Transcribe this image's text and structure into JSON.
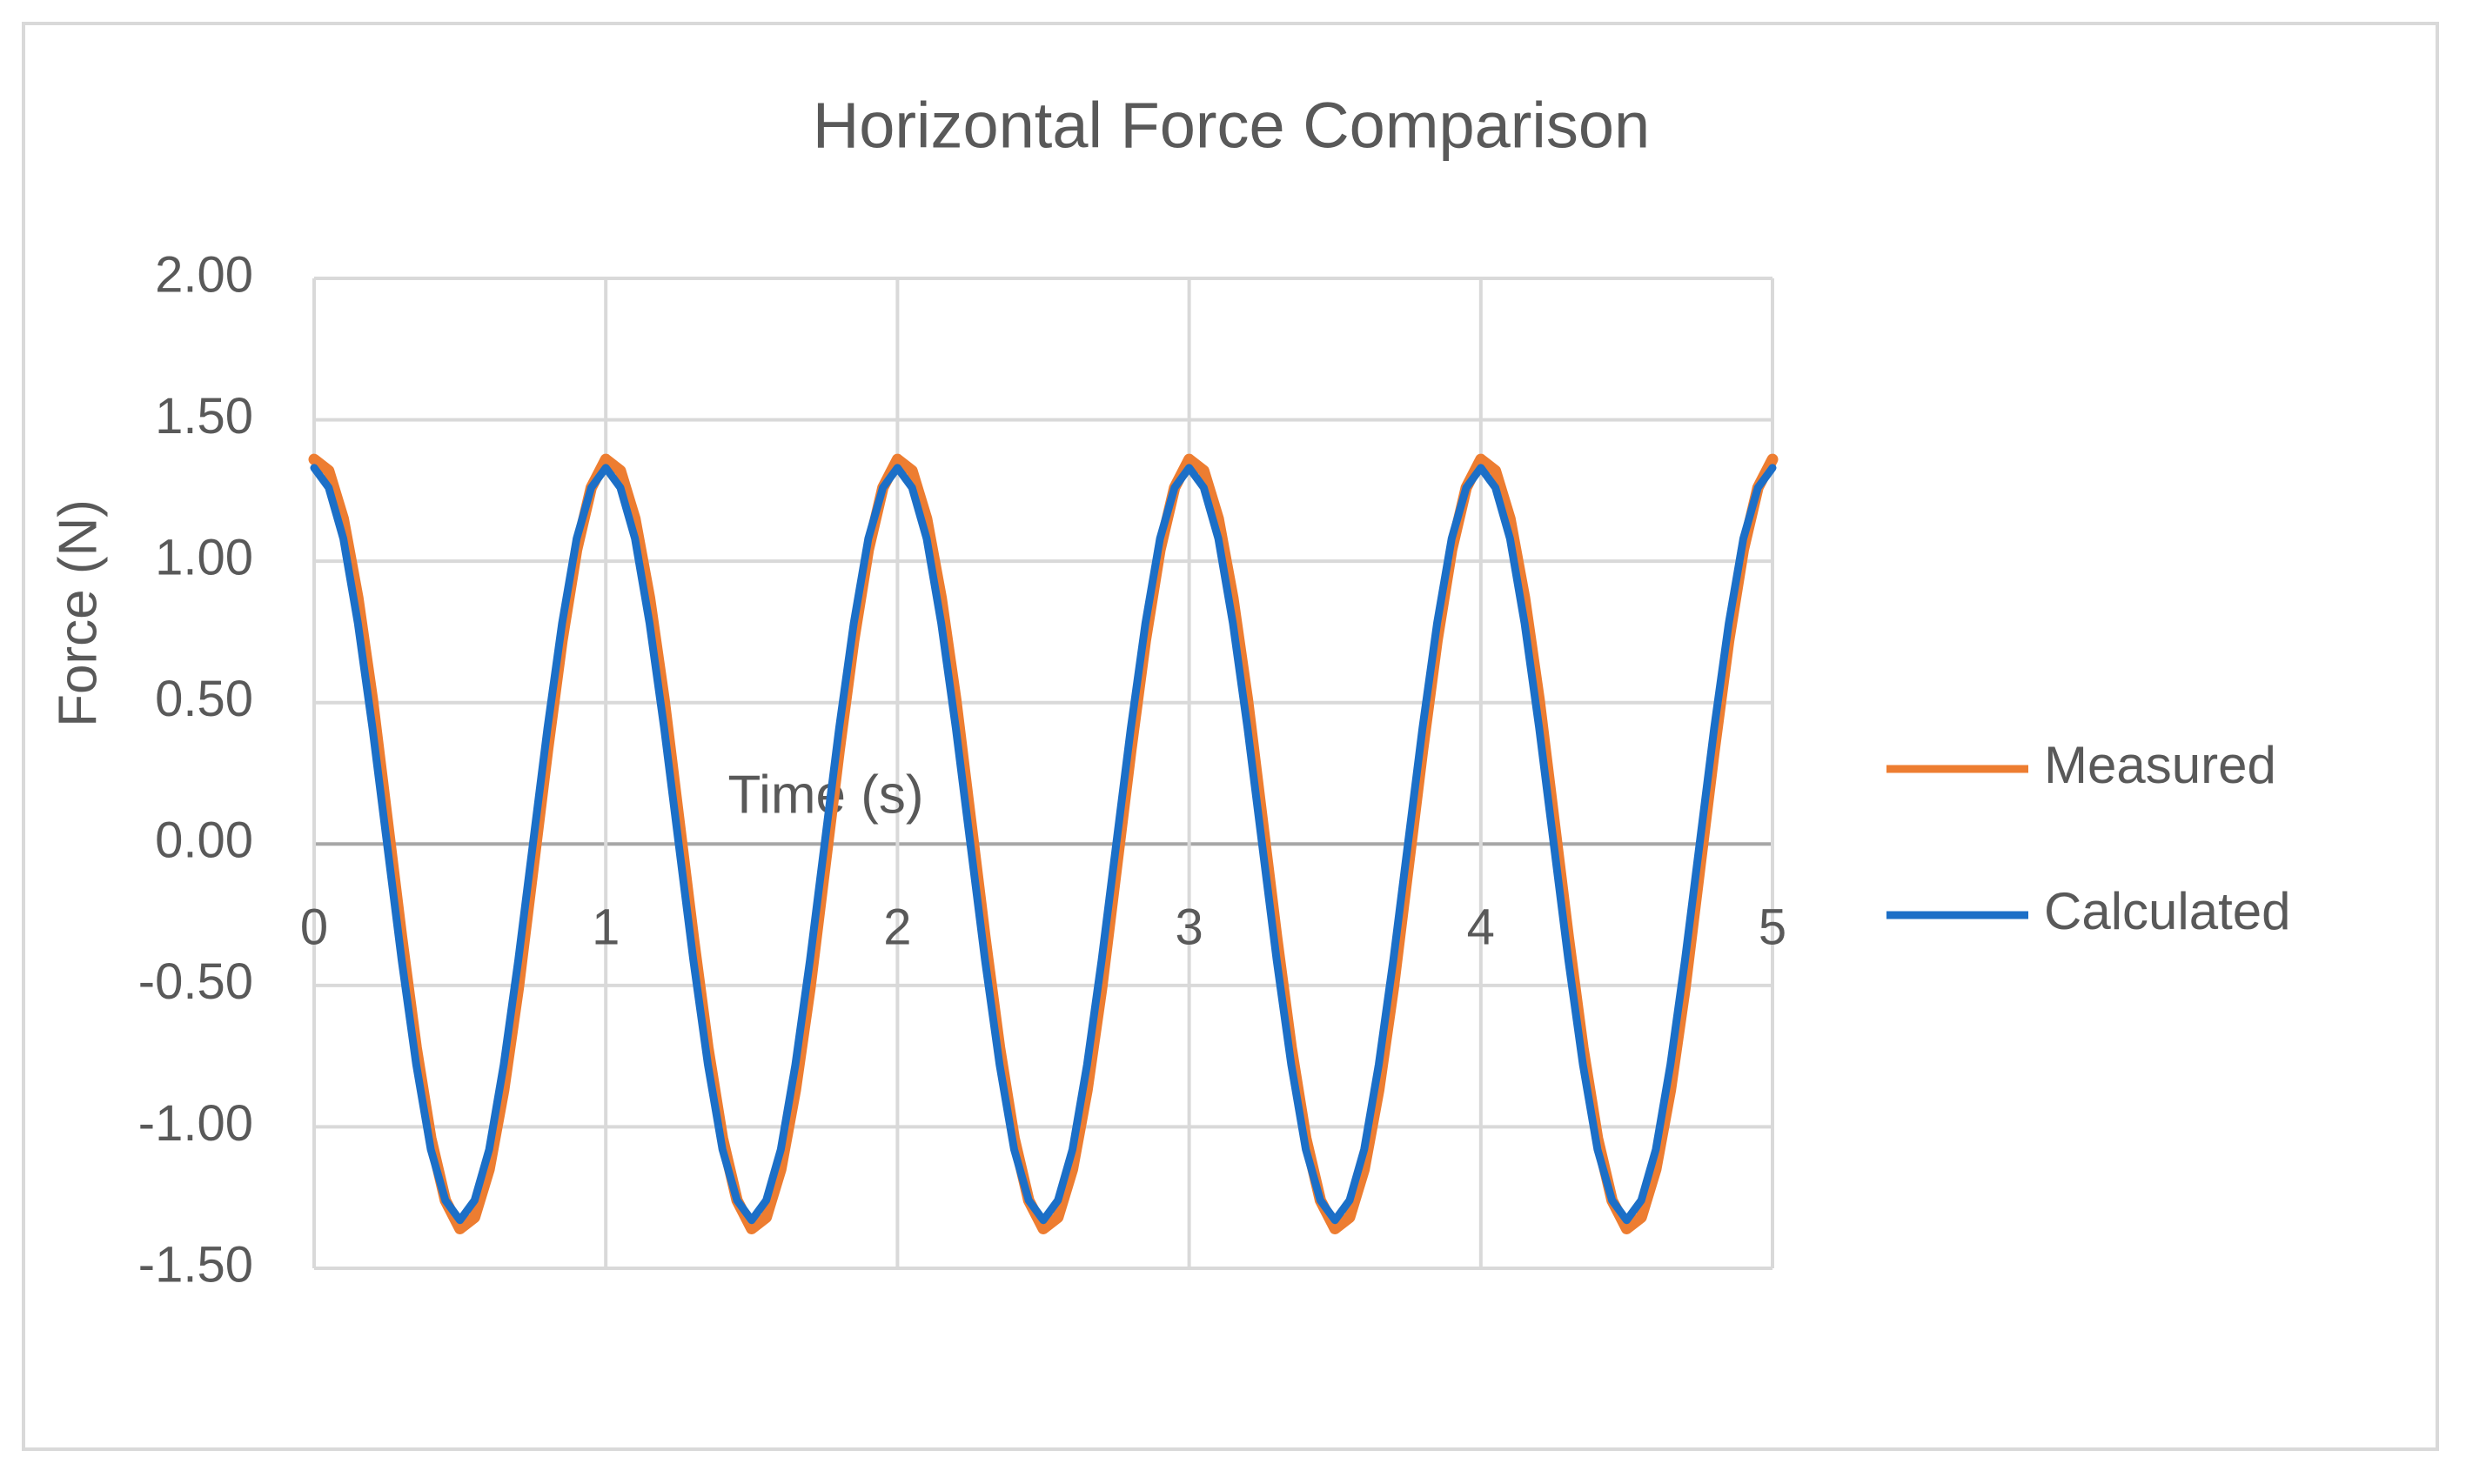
{
  "chart_data": {
    "type": "line",
    "title": "Horizontal Force Comparison",
    "x_label": "Time (s)",
    "y_label": "Force (N)",
    "x": [
      0,
      0.05,
      0.1,
      0.15,
      0.2,
      0.25,
      0.3,
      0.35,
      0.4,
      0.45,
      0.5,
      0.55,
      0.6,
      0.65,
      0.7,
      0.75,
      0.8,
      0.85,
      0.9,
      0.95,
      1,
      1.05,
      1.1,
      1.15,
      1.2,
      1.25,
      1.3,
      1.35,
      1.4,
      1.45,
      1.5,
      1.55,
      1.6,
      1.65,
      1.7,
      1.75,
      1.8,
      1.85,
      1.9,
      1.95,
      2,
      2.05,
      2.1,
      2.15,
      2.2,
      2.25,
      2.3,
      2.35,
      2.4,
      2.45,
      2.5,
      2.55,
      2.6,
      2.65,
      2.7,
      2.75,
      2.8,
      2.85,
      2.9,
      2.95,
      3,
      3.05,
      3.1,
      3.15,
      3.2,
      3.25,
      3.3,
      3.35,
      3.4,
      3.45,
      3.5,
      3.55,
      3.6,
      3.65,
      3.7,
      3.75,
      3.8,
      3.85,
      3.9,
      3.95,
      4,
      4.05,
      4.1,
      4.15,
      4.2,
      4.25,
      4.3,
      4.35,
      4.4,
      4.45,
      4.5,
      4.55,
      4.6,
      4.65,
      4.7,
      4.75,
      4.8,
      4.85,
      4.9,
      4.95,
      5
    ],
    "series": [
      {
        "name": "Measured",
        "color": "#ed7d31",
        "values": [
          1.36,
          1.32,
          1.15,
          0.87,
          0.51,
          0.09,
          -0.33,
          -0.72,
          -1.04,
          -1.26,
          -1.36,
          -1.32,
          -1.15,
          -0.87,
          -0.51,
          -0.09,
          0.33,
          0.72,
          1.04,
          1.26,
          1.36,
          1.32,
          1.15,
          0.87,
          0.51,
          0.09,
          -0.33,
          -0.72,
          -1.04,
          -1.26,
          -1.36,
          -1.32,
          -1.15,
          -0.87,
          -0.51,
          -0.09,
          0.33,
          0.72,
          1.04,
          1.26,
          1.36,
          1.32,
          1.15,
          0.87,
          0.51,
          0.09,
          -0.33,
          -0.72,
          -1.04,
          -1.26,
          -1.36,
          -1.32,
          -1.15,
          -0.87,
          -0.51,
          -0.09,
          0.33,
          0.72,
          1.04,
          1.26,
          1.36,
          1.32,
          1.15,
          0.87,
          0.51,
          0.09,
          -0.33,
          -0.72,
          -1.04,
          -1.26,
          -1.36,
          -1.32,
          -1.15,
          -0.87,
          -0.51,
          -0.09,
          0.33,
          0.72,
          1.04,
          1.26,
          1.36,
          1.32,
          1.15,
          0.87,
          0.51,
          0.09,
          -0.33,
          -0.72,
          -1.04,
          -1.26,
          -1.36,
          -1.32,
          -1.15,
          -0.87,
          -0.51,
          -0.09,
          0.33,
          0.72,
          1.04,
          1.26,
          1.36
        ]
      },
      {
        "name": "Calculated",
        "color": "#1c6fc7",
        "values": [
          1.33,
          1.26,
          1.08,
          0.78,
          0.41,
          0,
          -0.41,
          -0.78,
          -1.08,
          -1.26,
          -1.33,
          -1.26,
          -1.08,
          -0.78,
          -0.41,
          0,
          0.41,
          0.78,
          1.08,
          1.26,
          1.33,
          1.26,
          1.08,
          0.78,
          0.41,
          0,
          -0.41,
          -0.78,
          -1.08,
          -1.26,
          -1.33,
          -1.26,
          -1.08,
          -0.78,
          -0.41,
          0,
          0.41,
          0.78,
          1.08,
          1.26,
          1.33,
          1.26,
          1.08,
          0.78,
          0.41,
          0,
          -0.41,
          -0.78,
          -1.08,
          -1.26,
          -1.33,
          -1.26,
          -1.08,
          -0.78,
          -0.41,
          0,
          0.41,
          0.78,
          1.08,
          1.26,
          1.33,
          1.26,
          1.08,
          0.78,
          0.41,
          0,
          -0.41,
          -0.78,
          -1.08,
          -1.26,
          -1.33,
          -1.26,
          -1.08,
          -0.78,
          -0.41,
          0,
          0.41,
          0.78,
          1.08,
          1.26,
          1.33,
          1.26,
          1.08,
          0.78,
          0.41,
          0,
          -0.41,
          -0.78,
          -1.08,
          -1.26,
          -1.33,
          -1.26,
          -1.08,
          -0.78,
          -0.41,
          0,
          0.41,
          0.78,
          1.08,
          1.26,
          1.33
        ]
      }
    ],
    "xlim": [
      0,
      5
    ],
    "xticks": [
      0,
      1,
      2,
      3,
      4,
      5
    ],
    "ylim": [
      -1.5,
      2
    ],
    "yticks": [
      {
        "value": -1.5,
        "label": "-1.50"
      },
      {
        "value": -1,
        "label": "-1.00"
      },
      {
        "value": -0.5,
        "label": "-0.50"
      },
      {
        "value": 0,
        "label": "0.00"
      },
      {
        "value": 0.5,
        "label": "0.50"
      },
      {
        "value": 1,
        "label": "1.00"
      },
      {
        "value": 1.5,
        "label": "1.50"
      },
      {
        "value": 2,
        "label": "2.00"
      }
    ],
    "grid": true,
    "legend": "right"
  }
}
